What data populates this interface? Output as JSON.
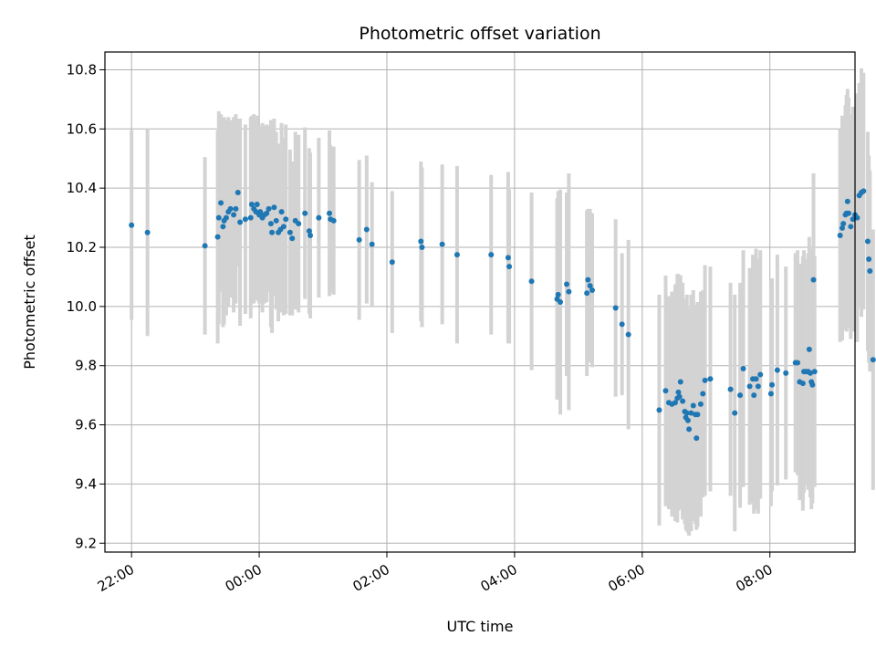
{
  "chart_data": {
    "type": "scatter",
    "title": "Photometric offset variation",
    "xlabel": "UTC time",
    "ylabel": "Photometric offset",
    "grid": true,
    "xlim": [
      -25,
      680
    ],
    "ylim": [
      9.17,
      10.86
    ],
    "x_unit": "minutes from 22:00 UTC",
    "x_ticks": [
      {
        "value": 0,
        "label": "22:00"
      },
      {
        "value": 120,
        "label": "00:00"
      },
      {
        "value": 240,
        "label": "02:00"
      },
      {
        "value": 360,
        "label": "04:00"
      },
      {
        "value": 480,
        "label": "06:00"
      },
      {
        "value": 600,
        "label": "08:00"
      }
    ],
    "y_ticks": [
      9.2,
      9.4,
      9.6,
      9.8,
      10.0,
      10.2,
      10.4,
      10.6,
      10.8
    ],
    "y_tick_labels": [
      "9.2",
      "9.4",
      "9.6",
      "9.8",
      "10.0",
      "10.2",
      "10.4",
      "10.6",
      "10.8"
    ],
    "colors": {
      "points": "#1f77b4",
      "errorbars": "#d3d3d3",
      "grid": "#b0b0b0"
    },
    "points": [
      [
        0,
        10.275,
        0.32
      ],
      [
        15,
        10.25,
        0.35
      ],
      [
        69,
        10.205,
        0.3
      ],
      [
        81,
        10.235,
        0.36
      ],
      [
        82,
        10.3,
        0.36
      ],
      [
        84,
        10.35,
        0.3
      ],
      [
        86,
        10.27,
        0.34
      ],
      [
        87,
        10.29,
        0.35
      ],
      [
        89,
        10.3,
        0.33
      ],
      [
        91,
        10.32,
        0.32
      ],
      [
        93,
        10.33,
        0.3
      ],
      [
        96,
        10.31,
        0.33
      ],
      [
        98,
        10.33,
        0.32
      ],
      [
        100,
        10.385,
        0.25
      ],
      [
        102,
        10.285,
        0.35
      ],
      [
        107,
        10.295,
        0.32
      ],
      [
        112,
        10.3,
        0.34
      ],
      [
        113,
        10.345,
        0.3
      ],
      [
        115,
        10.33,
        0.32
      ],
      [
        117,
        10.32,
        0.3
      ],
      [
        118,
        10.345,
        0.3
      ],
      [
        120,
        10.31,
        0.3
      ],
      [
        121,
        10.32,
        0.28
      ],
      [
        123,
        10.3,
        0.32
      ],
      [
        125,
        10.31,
        0.3
      ],
      [
        127,
        10.315,
        0.3
      ],
      [
        129,
        10.33,
        0.28
      ],
      [
        131,
        10.28,
        0.35
      ],
      [
        132,
        10.25,
        0.34
      ],
      [
        134,
        10.335,
        0.3
      ],
      [
        136,
        10.29,
        0.3
      ],
      [
        138,
        10.25,
        0.3
      ],
      [
        140,
        10.26,
        0.28
      ],
      [
        141,
        10.32,
        0.3
      ],
      [
        143,
        10.27,
        0.3
      ],
      [
        145,
        10.295,
        0.32
      ],
      [
        149,
        10.25,
        0.28
      ],
      [
        151,
        10.23,
        0.26
      ],
      [
        154,
        10.29,
        0.3
      ],
      [
        157,
        10.28,
        0.3
      ],
      [
        163,
        10.315,
        0.29
      ],
      [
        167,
        10.255,
        0.28
      ],
      [
        168,
        10.24,
        0.28
      ],
      [
        176,
        10.3,
        0.27
      ],
      [
        186,
        10.315,
        0.28
      ],
      [
        187,
        10.295,
        0.25
      ],
      [
        190,
        10.29,
        0.25
      ],
      [
        214,
        10.225,
        0.27
      ],
      [
        221,
        10.26,
        0.25
      ],
      [
        226,
        10.21,
        0.21
      ],
      [
        245,
        10.15,
        0.24
      ],
      [
        272,
        10.22,
        0.27
      ],
      [
        273,
        10.2,
        0.27
      ],
      [
        292,
        10.21,
        0.27
      ],
      [
        306,
        10.175,
        0.3
      ],
      [
        338,
        10.175,
        0.27
      ],
      [
        354,
        10.165,
        0.29
      ],
      [
        355,
        10.135,
        0.26
      ],
      [
        376,
        10.085,
        0.3
      ],
      [
        400,
        10.025,
        0.34
      ],
      [
        401,
        10.04,
        0.35
      ],
      [
        403,
        10.015,
        0.38
      ],
      [
        409,
        10.075,
        0.31
      ],
      [
        411,
        10.05,
        0.4
      ],
      [
        428,
        10.045,
        0.28
      ],
      [
        429,
        10.09,
        0.24
      ],
      [
        431,
        10.07,
        0.26
      ],
      [
        433,
        10.055,
        0.26
      ],
      [
        455,
        9.995,
        0.3
      ],
      [
        461,
        9.94,
        0.24
      ],
      [
        467,
        9.905,
        0.32
      ],
      [
        496,
        9.65,
        0.39
      ],
      [
        502,
        9.715,
        0.39
      ],
      [
        505,
        9.675,
        0.36
      ],
      [
        508,
        9.67,
        0.38
      ],
      [
        511,
        9.675,
        0.4
      ],
      [
        513,
        9.69,
        0.42
      ],
      [
        514,
        9.71,
        0.4
      ],
      [
        515,
        9.695,
        0.38
      ],
      [
        516,
        9.745,
        0.36
      ],
      [
        518,
        9.68,
        0.4
      ],
      [
        520,
        9.645,
        0.38
      ],
      [
        521,
        9.625,
        0.38
      ],
      [
        522,
        9.64,
        0.4
      ],
      [
        523,
        9.615,
        0.38
      ],
      [
        524,
        9.585,
        0.36
      ],
      [
        526,
        9.64,
        0.4
      ],
      [
        528,
        9.665,
        0.39
      ],
      [
        530,
        9.635,
        0.37
      ],
      [
        531,
        9.555,
        0.31
      ],
      [
        532,
        9.635,
        0.38
      ],
      [
        535,
        9.67,
        0.38
      ],
      [
        537,
        9.705,
        0.35
      ],
      [
        539,
        9.75,
        0.39
      ],
      [
        544,
        9.755,
        0.38
      ],
      [
        563,
        9.72,
        0.36
      ],
      [
        567,
        9.64,
        0.4
      ],
      [
        572,
        9.7,
        0.38
      ],
      [
        575,
        9.79,
        0.4
      ],
      [
        581,
        9.73,
        0.4
      ],
      [
        584,
        9.755,
        0.42
      ],
      [
        585,
        9.7,
        0.4
      ],
      [
        587,
        9.755,
        0.44
      ],
      [
        589,
        9.73,
        0.43
      ],
      [
        591,
        9.77,
        0.42
      ],
      [
        601,
        9.705,
        0.38
      ],
      [
        602,
        9.735,
        0.36
      ],
      [
        607,
        9.785,
        0.39
      ],
      [
        615,
        9.775,
        0.36
      ],
      [
        624,
        9.81,
        0.37
      ],
      [
        626,
        9.81,
        0.38
      ],
      [
        628,
        9.745,
        0.4
      ],
      [
        631,
        9.74,
        0.43
      ],
      [
        632,
        9.78,
        0.41
      ],
      [
        634,
        9.78,
        0.38
      ],
      [
        637,
        9.855,
        0.38
      ],
      [
        641,
        10.09,
        0.36
      ],
      [
        636,
        9.78,
        0.4
      ],
      [
        638,
        9.775,
        0.42
      ],
      [
        639,
        9.745,
        0.43
      ],
      [
        640,
        9.735,
        0.4
      ],
      [
        642,
        9.78,
        0.39
      ],
      [
        666,
        10.24,
        0.36
      ],
      [
        668,
        10.265,
        0.38
      ],
      [
        669,
        10.28,
        0.36
      ],
      [
        671,
        10.31,
        0.37
      ],
      [
        672,
        10.315,
        0.4
      ],
      [
        673,
        10.355,
        0.38
      ],
      [
        674,
        10.315,
        0.39
      ],
      [
        676,
        10.27,
        0.38
      ],
      [
        678,
        10.295,
        0.38
      ],
      [
        680,
        10.31,
        0.36
      ],
      [
        682,
        10.3,
        0.42
      ],
      [
        684,
        10.375,
        0.38
      ],
      [
        686,
        10.385,
        0.42
      ],
      [
        688,
        10.39,
        0.4
      ],
      [
        692,
        10.22,
        0.37
      ],
      [
        693,
        10.16,
        0.35
      ],
      [
        694,
        10.12,
        0.34
      ],
      [
        697,
        9.82,
        0.44
      ]
    ]
  }
}
